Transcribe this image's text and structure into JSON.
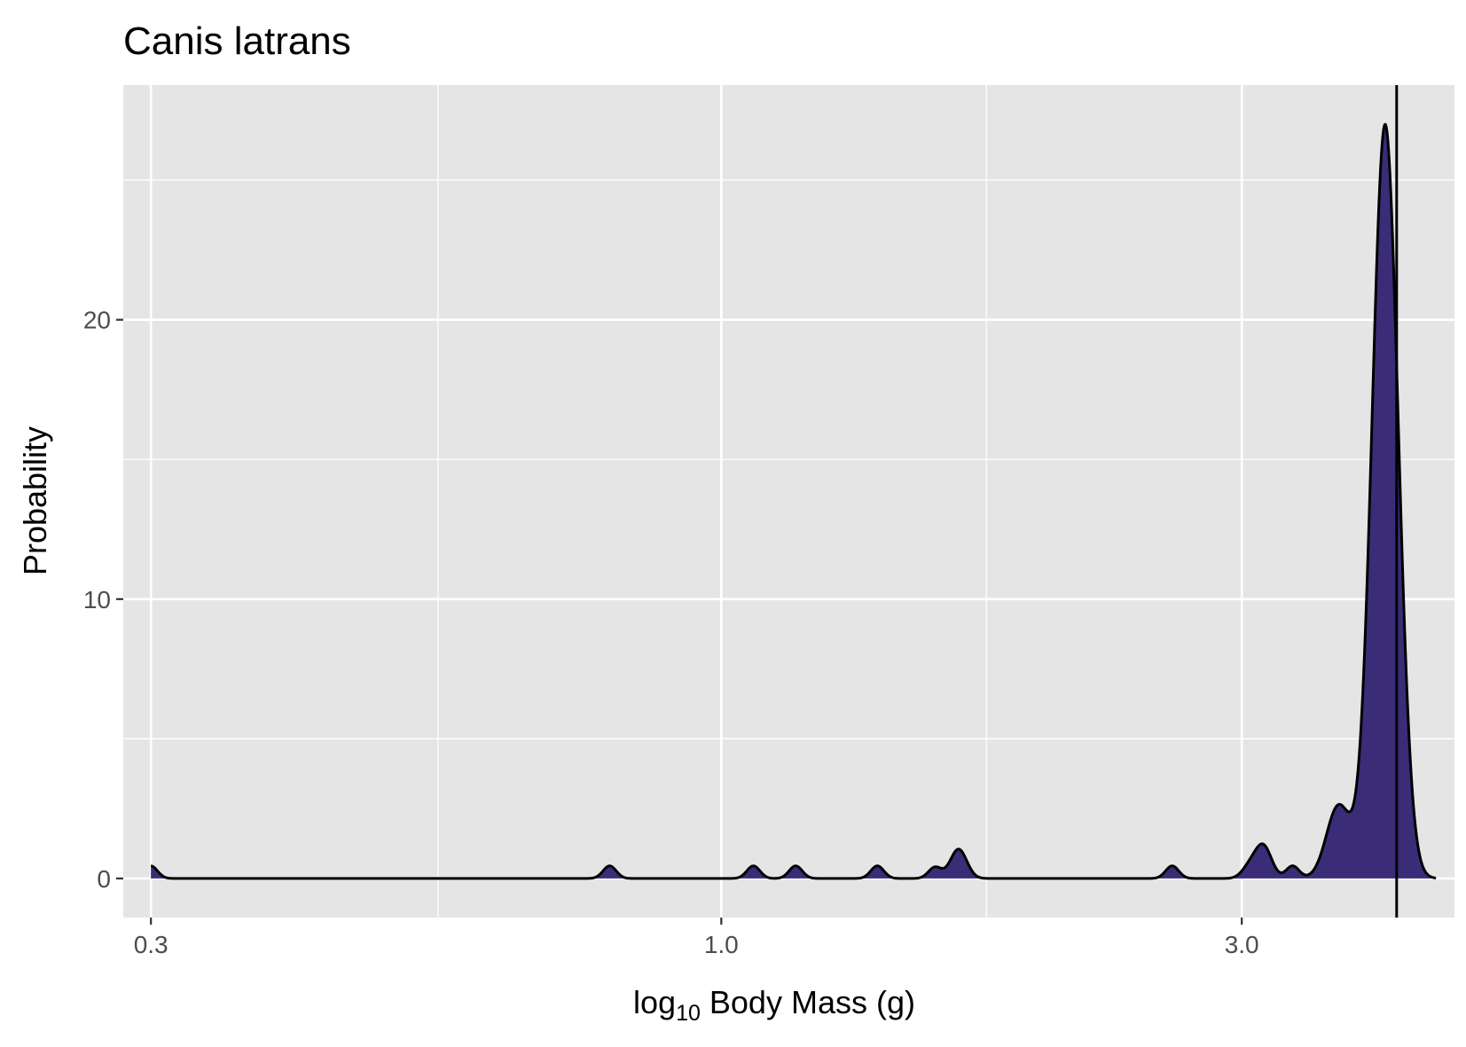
{
  "chart_data": {
    "type": "area",
    "title": "Canis latrans",
    "xlabel": {
      "prefix": "log",
      "subscript": "10",
      "suffix": " Body Mass (g)"
    },
    "ylabel": "Probability",
    "x_scale": "log",
    "xlim": [
      0.283,
      4.7
    ],
    "ylim": [
      -1.4,
      28.4
    ],
    "x_ticks": [
      {
        "value": 0.3,
        "label": "0.3"
      },
      {
        "value": 1.0,
        "label": "1.0"
      },
      {
        "value": 3.0,
        "label": "3.0"
      }
    ],
    "x_minor_ticks": [
      0.55,
      1.75
    ],
    "y_ticks": [
      {
        "value": 0,
        "label": "0"
      },
      {
        "value": 10,
        "label": "10"
      },
      {
        "value": 20,
        "label": "20"
      }
    ],
    "y_minor_ticks": [
      5,
      15,
      25
    ],
    "grid": true,
    "legend": "none",
    "fill_color": "#3b2c78",
    "line_color": "#000000",
    "panel_color": "#e5e5e5",
    "x_range": [
      0.3,
      4.52
    ],
    "peaks": [
      {
        "x": 0.3,
        "height": 0.45,
        "width": 0.006
      },
      {
        "x": 0.79,
        "height": 0.45,
        "width": 0.006
      },
      {
        "x": 1.07,
        "height": 0.45,
        "width": 0.006
      },
      {
        "x": 1.17,
        "height": 0.45,
        "width": 0.006
      },
      {
        "x": 1.39,
        "height": 0.45,
        "width": 0.006
      },
      {
        "x": 1.57,
        "height": 0.4,
        "width": 0.006
      },
      {
        "x": 1.65,
        "height": 1.05,
        "width": 0.0075
      },
      {
        "x": 2.59,
        "height": 0.45,
        "width": 0.006
      },
      {
        "x": 3.05,
        "height": 0.4,
        "width": 0.007
      },
      {
        "x": 3.14,
        "height": 1.15,
        "width": 0.0075
      },
      {
        "x": 3.34,
        "height": 0.45,
        "width": 0.006
      },
      {
        "x": 3.68,
        "height": 2.6,
        "width": 0.011
      },
      {
        "x": 4.06,
        "height": 27.0,
        "width": 0.012
      }
    ],
    "reference_line": {
      "x": 4.16
    }
  }
}
